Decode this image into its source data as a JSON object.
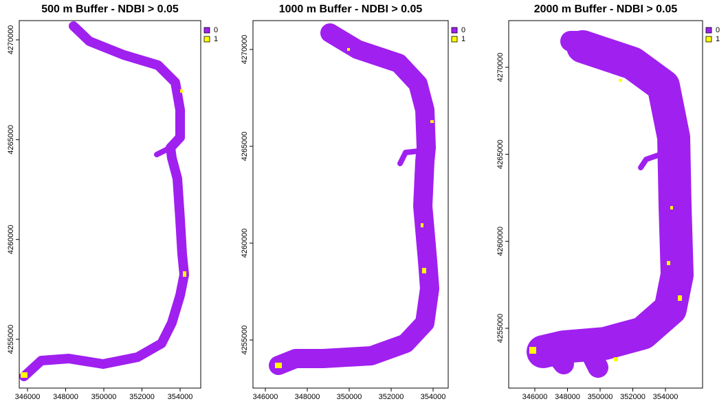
{
  "chart_data": [
    {
      "type": "raster",
      "title": "500 m Buffer - NDBI > 0.05",
      "xlim": [
        345568,
        355081
      ],
      "ylim": [
        4252558,
        4270963
      ],
      "xticks": [
        346000,
        348000,
        350000,
        352000,
        354000
      ],
      "yticks": [
        4255000,
        4260000,
        4265000,
        4270000
      ],
      "series": [
        {
          "name": "0",
          "color": "#a020f0"
        },
        {
          "name": "1",
          "color": "#ffff00"
        }
      ]
    },
    {
      "type": "raster",
      "title": "1000 m Buffer - NDBI > 0.05",
      "xlim": [
        345410,
        354721
      ],
      "ylim": [
        4252518,
        4271489
      ],
      "xticks": [
        346000,
        348000,
        350000,
        352000,
        354000
      ],
      "yticks": [
        4255000,
        4260000,
        4265000,
        4270000
      ],
      "series": [
        {
          "name": "0",
          "color": "#a020f0"
        },
        {
          "name": "1",
          "color": "#ffff00"
        }
      ]
    },
    {
      "type": "raster",
      "title": "2000 m Buffer - NDBI > 0.05",
      "xlim": [
        344400,
        356274
      ],
      "ylim": [
        4251565,
        4272684
      ],
      "xticks": [
        346000,
        348000,
        350000,
        352000,
        354000
      ],
      "yticks": [
        4255000,
        4260000,
        4265000,
        4270000
      ],
      "series": [
        {
          "name": "0",
          "color": "#a020f0"
        },
        {
          "name": "1",
          "color": "#ffff00"
        }
      ]
    }
  ]
}
